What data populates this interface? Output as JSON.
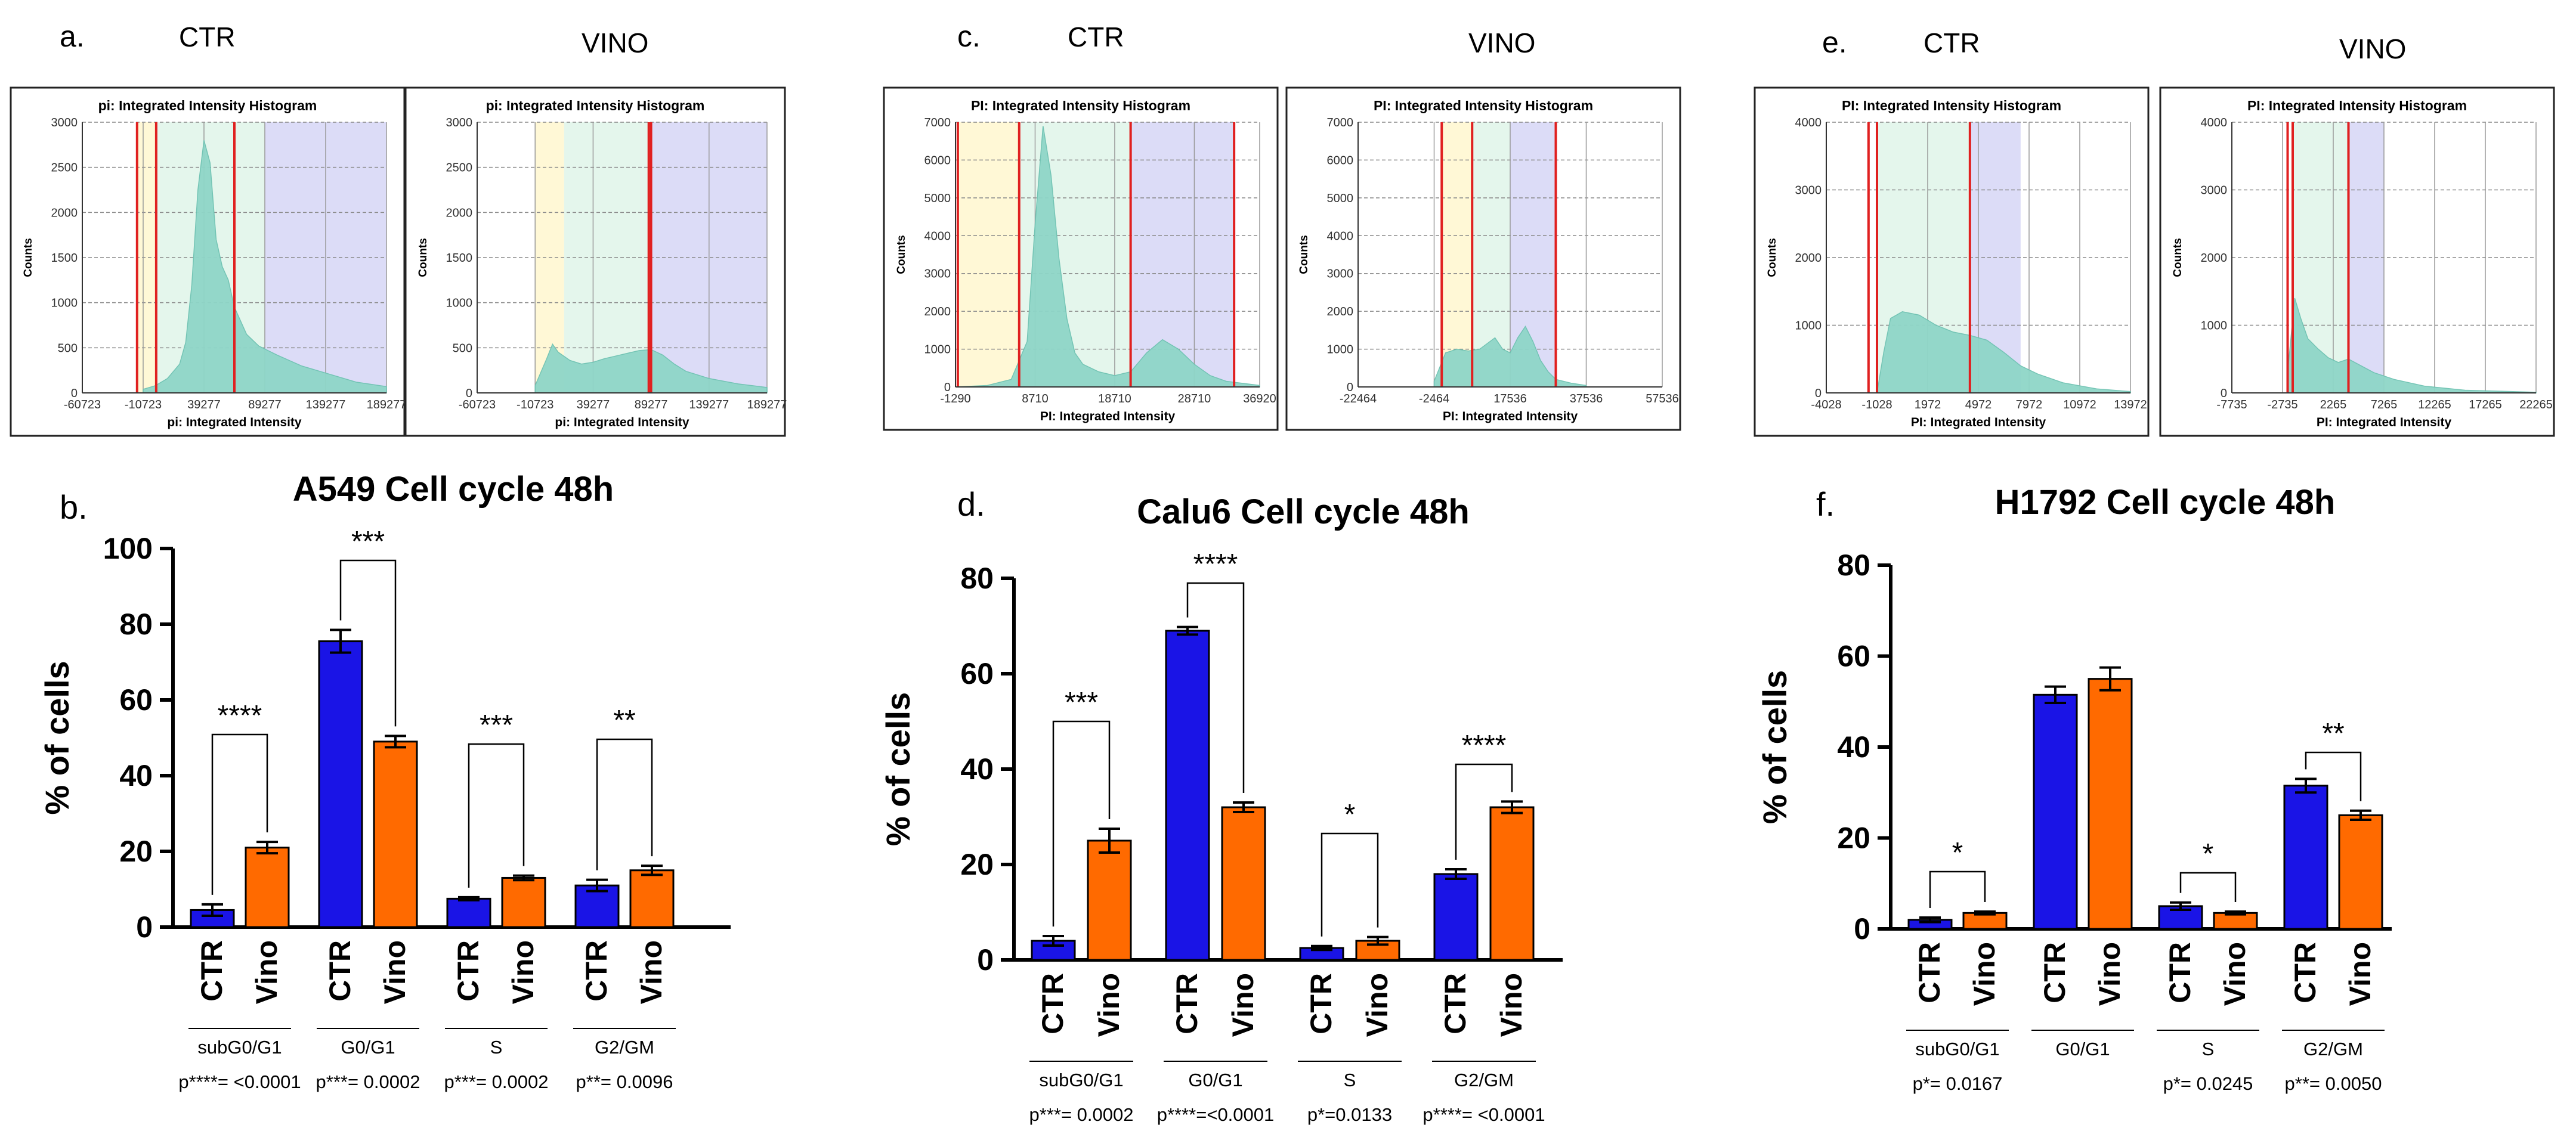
{
  "figure_labels": {
    "a": "a.",
    "b": "b.",
    "c": "c.",
    "d": "d.",
    "e": "e.",
    "f": "f."
  },
  "condition_labels": {
    "ctr": "CTR",
    "vino": "VINO"
  },
  "colors": {
    "ctr_bar": "#1a14e6",
    "vino_bar": "#ff6a00",
    "histogram_fill": "#8fd6c8",
    "gate_line": "#e02020",
    "gate_subg0": "#fff8d6",
    "gate_g0g1": "#e4f6ec",
    "gate_g2m": "#dcdcf7"
  },
  "chart_data": [
    {
      "id": "a-ctr",
      "type": "bar",
      "panel": "a",
      "title": "pi: Integrated Intensity Histogram",
      "xlabel": "pi: Integrated Intensity",
      "ylabel": "Counts",
      "xlim": [
        -60723,
        189277
      ],
      "ylim": [
        0,
        3000
      ],
      "xticks": [
        -60723,
        -10723,
        39277,
        89277,
        139277,
        189277
      ],
      "xtick_labels": [
        "-60723",
        "-10723",
        "39277",
        "89277",
        "139277",
        "189277"
      ],
      "yticks": [
        0,
        500,
        1000,
        1500,
        2000,
        2500,
        3000
      ],
      "ytick_labels": [
        "0",
        "500",
        "1000",
        "1500",
        "2000",
        "2500",
        "3000"
      ],
      "gate_lines": [
        -15723,
        0,
        64277
      ],
      "regions": [
        {
          "from": -15723,
          "to": 0,
          "phase": "subg0"
        },
        {
          "from": 0,
          "to": 89277,
          "phase": "g0g1"
        },
        {
          "from": 89277,
          "to": 189277,
          "phase": "g2m"
        }
      ],
      "histogram": [
        [
          -10723,
          40
        ],
        [
          -723,
          80
        ],
        [
          9277,
          160
        ],
        [
          19277,
          320
        ],
        [
          24277,
          560
        ],
        [
          29277,
          1200
        ],
        [
          34277,
          2250
        ],
        [
          39277,
          2800
        ],
        [
          44277,
          2550
        ],
        [
          49277,
          1700
        ],
        [
          54277,
          1400
        ],
        [
          59277,
          1250
        ],
        [
          64277,
          950
        ],
        [
          74277,
          650
        ],
        [
          84277,
          520
        ],
        [
          99277,
          420
        ],
        [
          119277,
          300
        ],
        [
          139277,
          220
        ],
        [
          164277,
          120
        ],
        [
          189277,
          70
        ]
      ]
    },
    {
      "id": "a-vino",
      "type": "bar",
      "panel": "a",
      "title": "pi: Integrated Intensity Histogram",
      "xlabel": "pi: Integrated Intensity",
      "ylabel": "Counts",
      "xlim": [
        -60723,
        189277
      ],
      "ylim": [
        0,
        3000
      ],
      "xticks": [
        -60723,
        -10723,
        39277,
        89277,
        139277,
        189277
      ],
      "xtick_labels": [
        "-60723",
        "-10723",
        "39277",
        "89277",
        "139277",
        "189277"
      ],
      "yticks": [
        0,
        500,
        1000,
        1500,
        2000,
        2500,
        3000
      ],
      "ytick_labels": [
        "0",
        "500",
        "1000",
        "1500",
        "2000",
        "2500",
        "3000"
      ],
      "gate_lines": [
        87277,
        89277
      ],
      "regions": [
        {
          "from": -10723,
          "to": 14277,
          "phase": "subg0"
        },
        {
          "from": 14277,
          "to": 89277,
          "phase": "g0g1"
        },
        {
          "from": 89277,
          "to": 189277,
          "phase": "g2m"
        }
      ],
      "histogram": [
        [
          -10723,
          80
        ],
        [
          -723,
          380
        ],
        [
          4277,
          540
        ],
        [
          9277,
          450
        ],
        [
          19277,
          360
        ],
        [
          29277,
          320
        ],
        [
          39277,
          340
        ],
        [
          49277,
          380
        ],
        [
          59277,
          410
        ],
        [
          69277,
          440
        ],
        [
          79277,
          470
        ],
        [
          89277,
          480
        ],
        [
          99277,
          420
        ],
        [
          109277,
          320
        ],
        [
          119277,
          240
        ],
        [
          139277,
          160
        ],
        [
          164277,
          100
        ],
        [
          189277,
          60
        ]
      ]
    },
    {
      "id": "c-ctr",
      "type": "bar",
      "panel": "c",
      "title": "PI: Integrated Intensity Histogram",
      "xlabel": "PI: Integrated Intensity",
      "ylabel": "Counts",
      "xlim": [
        -1290,
        36920
      ],
      "ylim": [
        0,
        7000
      ],
      "xticks": [
        -1290,
        8710,
        18710,
        28710,
        36920
      ],
      "xtick_labels": [
        "-1290",
        "8710",
        "18710",
        "28710",
        "36920"
      ],
      "yticks": [
        0,
        1000,
        2000,
        3000,
        4000,
        5000,
        6000,
        7000
      ],
      "ytick_labels": [
        "0",
        "1000",
        "2000",
        "3000",
        "4000",
        "5000",
        "6000",
        "7000"
      ],
      "gate_lines": [
        -1000,
        6710,
        20710,
        33710
      ],
      "regions": [
        {
          "from": -1000,
          "to": 6710,
          "phase": "subg0"
        },
        {
          "from": 6710,
          "to": 20710,
          "phase": "g0g1"
        },
        {
          "from": 20710,
          "to": 33710,
          "phase": "g2m"
        }
      ],
      "histogram": [
        [
          -1290,
          0
        ],
        [
          2710,
          40
        ],
        [
          5710,
          200
        ],
        [
          7710,
          1200
        ],
        [
          8710,
          4300
        ],
        [
          9710,
          6900
        ],
        [
          10710,
          5600
        ],
        [
          11710,
          3400
        ],
        [
          12710,
          1800
        ],
        [
          13710,
          900
        ],
        [
          14710,
          600
        ],
        [
          16710,
          400
        ],
        [
          18710,
          300
        ],
        [
          20710,
          400
        ],
        [
          22710,
          900
        ],
        [
          24710,
          1250
        ],
        [
          26710,
          1000
        ],
        [
          28710,
          600
        ],
        [
          30710,
          300
        ],
        [
          32710,
          150
        ],
        [
          36920,
          40
        ]
      ]
    },
    {
      "id": "c-vino",
      "type": "bar",
      "panel": "c",
      "title": "PI: Integrated Intensity Histogram",
      "xlabel": "PI: Integrated Intensity",
      "ylabel": "Counts",
      "xlim": [
        -22464,
        57536
      ],
      "ylim": [
        0,
        7000
      ],
      "xticks": [
        -22464,
        -2464,
        17536,
        37536,
        57536
      ],
      "xtick_labels": [
        "-22464",
        "-2464",
        "17536",
        "37536",
        "57536"
      ],
      "yticks": [
        0,
        1000,
        2000,
        3000,
        4000,
        5000,
        6000,
        7000
      ],
      "ytick_labels": [
        "0",
        "1000",
        "2000",
        "3000",
        "4000",
        "5000",
        "6000",
        "7000"
      ],
      "gate_lines": [
        -464,
        7536,
        29536
      ],
      "regions": [
        {
          "from": -464,
          "to": 7536,
          "phase": "subg0"
        },
        {
          "from": 7536,
          "to": 17536,
          "phase": "g0g1"
        },
        {
          "from": 17536,
          "to": 29536,
          "phase": "g2m"
        }
      ],
      "histogram": [
        [
          -2464,
          150
        ],
        [
          536,
          900
        ],
        [
          3536,
          1000
        ],
        [
          6536,
          950
        ],
        [
          9536,
          1000
        ],
        [
          11536,
          1150
        ],
        [
          13536,
          1300
        ],
        [
          15536,
          1000
        ],
        [
          17536,
          900
        ],
        [
          19536,
          1300
        ],
        [
          21536,
          1600
        ],
        [
          23536,
          1200
        ],
        [
          25536,
          700
        ],
        [
          27536,
          400
        ],
        [
          29536,
          200
        ],
        [
          33536,
          100
        ],
        [
          37536,
          40
        ]
      ]
    },
    {
      "id": "e-ctr",
      "type": "bar",
      "panel": "e",
      "title": "PI: Integrated Intensity Histogram",
      "xlabel": "PI: Integrated Intensity",
      "ylabel": "Counts",
      "xlim": [
        -4028,
        13972
      ],
      "ylim": [
        0,
        4000
      ],
      "xticks": [
        -4028,
        -1028,
        1972,
        4972,
        7972,
        10972,
        13972
      ],
      "xtick_labels": [
        "-4028",
        "-1028",
        "1972",
        "4972",
        "7972",
        "10972",
        "13972"
      ],
      "yticks": [
        0,
        1000,
        2000,
        3000,
        4000
      ],
      "ytick_labels": [
        "0",
        "1000",
        "2000",
        "3000",
        "4000"
      ],
      "gate_lines": [
        -1528,
        -1028,
        4472
      ],
      "regions": [
        {
          "from": -1028,
          "to": 4472,
          "phase": "g0g1"
        },
        {
          "from": 4472,
          "to": 7472,
          "phase": "g2m"
        }
      ],
      "histogram": [
        [
          -1028,
          0
        ],
        [
          -628,
          600
        ],
        [
          -228,
          1100
        ],
        [
          472,
          1200
        ],
        [
          1472,
          1150
        ],
        [
          2472,
          1000
        ],
        [
          3472,
          900
        ],
        [
          4472,
          850
        ],
        [
          5472,
          780
        ],
        [
          6472,
          600
        ],
        [
          7472,
          400
        ],
        [
          8472,
          280
        ],
        [
          9972,
          150
        ],
        [
          11972,
          60
        ],
        [
          13972,
          20
        ]
      ]
    },
    {
      "id": "e-vino",
      "type": "bar",
      "panel": "e",
      "title": "PI: Integrated Intensity Histogram",
      "xlabel": "PI: Integrated Intensity",
      "ylabel": "Counts",
      "xlim": [
        -7735,
        22265
      ],
      "ylim": [
        0,
        4000
      ],
      "xticks": [
        -7735,
        -2735,
        2265,
        7265,
        12265,
        17265,
        22265
      ],
      "xtick_labels": [
        "-7735",
        "-2735",
        "2265",
        "7265",
        "12265",
        "17265",
        "22265"
      ],
      "yticks": [
        0,
        1000,
        2000,
        3000,
        4000
      ],
      "ytick_labels": [
        "0",
        "1000",
        "2000",
        "3000",
        "4000"
      ],
      "gate_lines": [
        -2235,
        -1735,
        3765
      ],
      "regions": [
        {
          "from": -1735,
          "to": 3765,
          "phase": "g0g1"
        },
        {
          "from": 3765,
          "to": 7265,
          "phase": "g2m"
        }
      ],
      "histogram": [
        [
          -2235,
          300
        ],
        [
          -1535,
          1400
        ],
        [
          -935,
          1100
        ],
        [
          -235,
          800
        ],
        [
          765,
          650
        ],
        [
          1765,
          520
        ],
        [
          2765,
          450
        ],
        [
          3765,
          500
        ],
        [
          4765,
          420
        ],
        [
          6265,
          300
        ],
        [
          8265,
          200
        ],
        [
          11265,
          100
        ],
        [
          15265,
          40
        ],
        [
          22265,
          10
        ]
      ]
    },
    {
      "id": "b",
      "type": "bar",
      "panel": "b",
      "title": "A549 Cell cycle 48h",
      "ylabel": "% of cells",
      "ylim": [
        0,
        100
      ],
      "yticks": [
        0,
        20,
        40,
        60,
        80,
        100
      ],
      "ytick_labels": [
        "0",
        "20",
        "40",
        "60",
        "80",
        "100"
      ],
      "bar_labels": [
        "CTR",
        "Vino"
      ],
      "groups": [
        "subG0/G1",
        "G0/G1",
        "S",
        "G2/GM"
      ],
      "series": [
        {
          "name": "CTR",
          "values": [
            4.5,
            75.5,
            7.5,
            11
          ],
          "errors": [
            1.5,
            3,
            0.4,
            1.5
          ]
        },
        {
          "name": "Vino",
          "values": [
            21,
            49,
            13,
            15
          ],
          "errors": [
            1.5,
            1.5,
            0.6,
            1.2
          ]
        }
      ],
      "significance": [
        "****",
        "***",
        "***",
        "**"
      ],
      "pvalues": [
        "p****= <0.0001",
        "p***= 0.0002",
        "p***= 0.0002",
        "p**= 0.0096"
      ]
    },
    {
      "id": "d",
      "type": "bar",
      "panel": "d",
      "title": "Calu6 Cell cycle 48h",
      "ylabel": "% of cells",
      "ylim": [
        0,
        80
      ],
      "yticks": [
        0,
        20,
        40,
        60,
        80
      ],
      "ytick_labels": [
        "0",
        "20",
        "40",
        "60",
        "80"
      ],
      "bar_labels": [
        "CTR",
        "Vino"
      ],
      "groups": [
        "subG0/G1",
        "G0/G1",
        "S",
        "G2/GM"
      ],
      "series": [
        {
          "name": "CTR",
          "values": [
            4,
            69,
            2.5,
            18
          ],
          "errors": [
            1,
            0.8,
            0.4,
            1
          ]
        },
        {
          "name": "Vino",
          "values": [
            25,
            32,
            4,
            32
          ],
          "errors": [
            2.5,
            1,
            0.8,
            1.2
          ]
        }
      ],
      "significance": [
        "***",
        "****",
        "*",
        "****"
      ],
      "pvalues": [
        "p***= 0.0002",
        "p****=<0.0001",
        "p*=0.0133",
        "p****= <0.0001"
      ]
    },
    {
      "id": "f",
      "type": "bar",
      "panel": "f",
      "title": "H1792 Cell cycle 48h",
      "ylabel": "% of cells",
      "ylim": [
        0,
        80
      ],
      "yticks": [
        0,
        20,
        40,
        60,
        80
      ],
      "ytick_labels": [
        "0",
        "20",
        "40",
        "60",
        "80"
      ],
      "bar_labels": [
        "CTR",
        "Vino"
      ],
      "groups": [
        "subG0/G1",
        "G0/G1",
        "S",
        "G2/GM"
      ],
      "series": [
        {
          "name": "CTR",
          "values": [
            2,
            51.5,
            5,
            31.5
          ],
          "errors": [
            0.5,
            1.8,
            0.8,
            1.5
          ]
        },
        {
          "name": "Vino",
          "values": [
            3.5,
            55,
            3.5,
            25
          ],
          "errors": [
            0.3,
            2.5,
            0.3,
            1
          ]
        }
      ],
      "significance": [
        "*",
        "",
        "*",
        "**"
      ],
      "pvalues": [
        "p*= 0.0167",
        "",
        "p*= 0.0245",
        "p**= 0.0050"
      ]
    }
  ]
}
